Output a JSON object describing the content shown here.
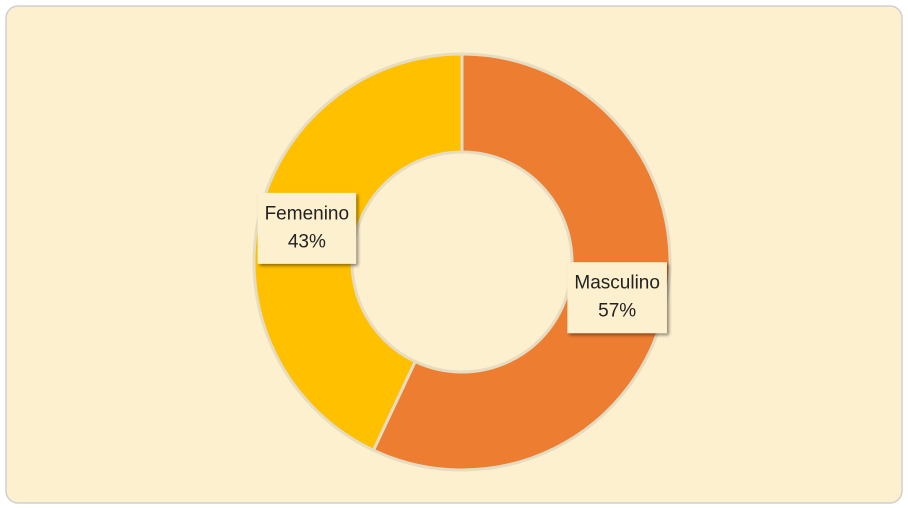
{
  "chart_data": {
    "type": "donut",
    "categories": [
      "Masculino",
      "Femenino"
    ],
    "values": [
      57,
      43
    ],
    "value_labels": [
      "57%",
      "43%"
    ],
    "colors": [
      "#ed7d31",
      "#ffc000"
    ]
  }
}
